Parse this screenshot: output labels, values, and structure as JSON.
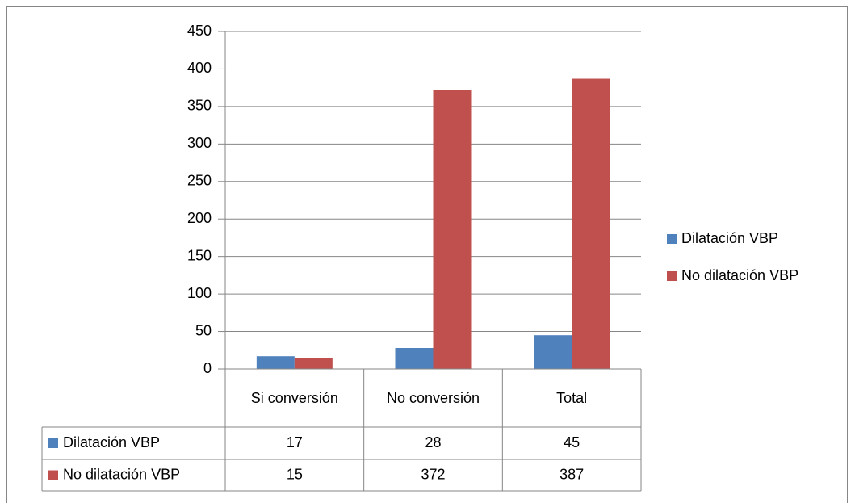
{
  "chart_data": {
    "type": "bar",
    "categories": [
      "Si conversión",
      "No conversión",
      "Total"
    ],
    "series": [
      {
        "name": "Dilatación VBP",
        "color": "#4f81bd",
        "values": [
          17,
          28,
          45
        ]
      },
      {
        "name": "No dilatación VBP",
        "color": "#c0504d",
        "values": [
          15,
          372,
          387
        ]
      }
    ],
    "ylim": [
      0,
      450
    ],
    "yticks": [
      0,
      50,
      100,
      150,
      200,
      250,
      300,
      350,
      400,
      450
    ],
    "grid": true,
    "legend": "right",
    "data_table": true
  }
}
